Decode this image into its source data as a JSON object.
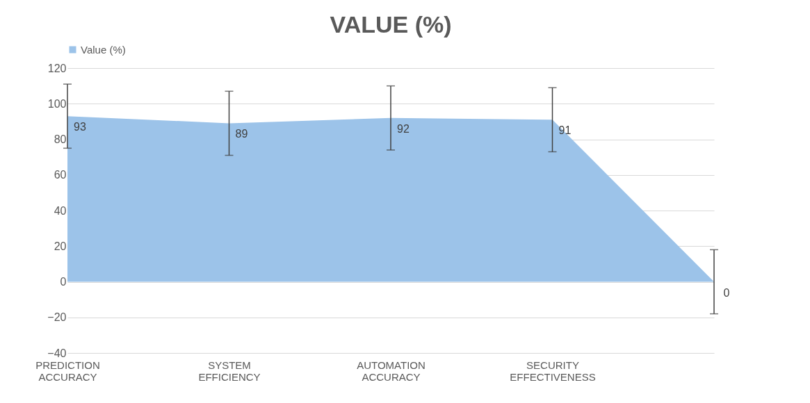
{
  "chart_data": {
    "type": "area",
    "title": "VALUE (%)",
    "categories": [
      "PREDICTION ACCURACY",
      "SYSTEM EFFICIENCY",
      "AUTOMATION ACCURACY",
      "SECURITY EFFECTIVENESS",
      null
    ],
    "series": [
      {
        "name": "Value (%)",
        "color": "#9cc3e9",
        "values": [
          93,
          89,
          92,
          91,
          0
        ],
        "errors": [
          18,
          18,
          18,
          18,
          18
        ]
      }
    ],
    "ylim": [
      -40,
      120
    ],
    "yticks": [
      -40,
      -20,
      0,
      20,
      40,
      60,
      80,
      100,
      120
    ],
    "grid": "y",
    "legend": "top",
    "data_labels": true
  }
}
